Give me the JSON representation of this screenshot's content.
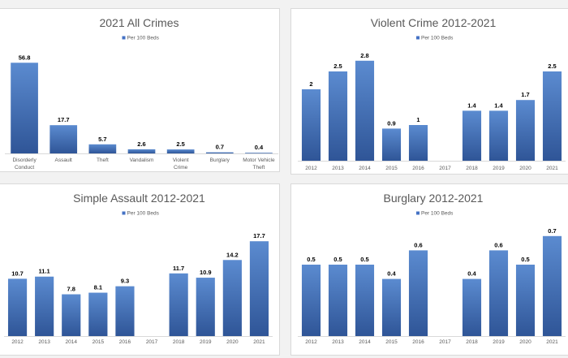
{
  "colors": {
    "bar_top": "#5b8bd0",
    "bar_bottom": "#2f5597",
    "legend": "#4472c4"
  },
  "chart_data": [
    {
      "type": "bar",
      "title": "2021 All Crimes",
      "categories": [
        "Disorderly Conduct",
        "Assault",
        "Theft",
        "Vandalism",
        "Violent Crime",
        "Burglary",
        "Motor Vehicle Theft"
      ],
      "series": [
        {
          "name": "Per 100 Beds",
          "values": [
            56.8,
            17.7,
            5.7,
            2.6,
            2.5,
            0.7,
            0.4
          ]
        }
      ],
      "ylim": [
        0,
        60
      ]
    },
    {
      "type": "bar",
      "title": "Violent Crime 2012-2021",
      "categories": [
        "2012",
        "2013",
        "2014",
        "2015",
        "2016",
        "2017",
        "2018",
        "2019",
        "2020",
        "2021"
      ],
      "series": [
        {
          "name": "Per 100 Beds",
          "values": [
            2,
            2.5,
            2.8,
            0.9,
            1,
            null,
            1.4,
            1.4,
            1.7,
            2.5
          ]
        }
      ],
      "ylim": [
        0,
        3
      ]
    },
    {
      "type": "bar",
      "title": "Simple Assault 2012-2021",
      "categories": [
        "2012",
        "2013",
        "2014",
        "2015",
        "2016",
        "2017",
        "2018",
        "2019",
        "2020",
        "2021"
      ],
      "series": [
        {
          "name": "Per 100 Beds",
          "values": [
            10.7,
            11.1,
            7.8,
            8.1,
            9.3,
            null,
            11.7,
            10.9,
            14.2,
            17.7
          ]
        }
      ],
      "ylim": [
        0,
        20
      ]
    },
    {
      "type": "bar",
      "title": "Burglary 2012-2021",
      "categories": [
        "2012",
        "2013",
        "2014",
        "2015",
        "2016",
        "2017",
        "2018",
        "2019",
        "2020",
        "2021"
      ],
      "series": [
        {
          "name": "Per 100 Beds",
          "values": [
            0.5,
            0.5,
            0.5,
            0.4,
            0.6,
            null,
            0.4,
            0.6,
            0.5,
            0.7
          ]
        }
      ],
      "ylim": [
        0,
        0.75
      ]
    }
  ]
}
